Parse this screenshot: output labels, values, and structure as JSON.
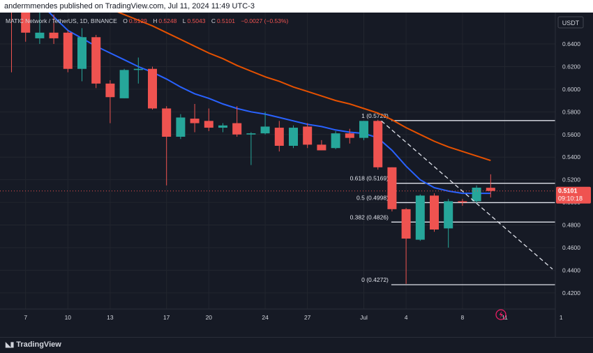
{
  "header": {
    "published": "andermmendes published on TradingView.com, Jul 11, 2024 11:49 UTC-3"
  },
  "legend": {
    "symbol": "MATIC Network / TetherUS, 1D, BINANCE",
    "o_label": "O",
    "o": "0.5129",
    "h_label": "H",
    "h": "0.5248",
    "l_label": "L",
    "l": "0.5043",
    "c_label": "C",
    "c": "0.5101",
    "change": "−0.0027 (−0.53%)"
  },
  "axis": {
    "currency": "USDT",
    "price_ticks": [
      "0.6400",
      "0.6200",
      "0.6000",
      "0.5800",
      "0.5600",
      "0.5400",
      "0.5200",
      "0.5000",
      "0.4800",
      "0.4600",
      "0.4400",
      "0.4200"
    ],
    "date_ticks": [
      "7",
      "10",
      "13",
      "17",
      "20",
      "24",
      "27",
      "Jul",
      "4",
      "8",
      "11",
      "1"
    ]
  },
  "last_price": {
    "value": "0.5101",
    "countdown": "09:10:18"
  },
  "brand": {
    "name": "TradingView"
  },
  "colors": {
    "up": "#26a69a",
    "down": "#ef5350",
    "ma_fast": "#2962ff",
    "ma_slow": "#e65100",
    "background": "#161a25"
  },
  "fib_levels": [
    {
      "ratio": "1",
      "label": "1 (0.5723)",
      "price": 0.5723
    },
    {
      "ratio": "0.618",
      "label": "0.618 (0.5169)",
      "price": 0.5169
    },
    {
      "ratio": "0.5",
      "label": "0.5 (0.4998)",
      "price": 0.4998
    },
    {
      "ratio": "0.382",
      "label": "0.382 (0.4826)",
      "price": 0.4826
    },
    {
      "ratio": "0",
      "label": "0 (0.4272)",
      "price": 0.4272
    }
  ],
  "chart_data": {
    "type": "candlestick",
    "y_range": [
      0.41,
      0.655
    ],
    "candles": [
      {
        "d": "Jun 7",
        "o": 0.685,
        "h": 0.698,
        "l": 0.615,
        "c": 0.668
      },
      {
        "d": "Jun 8",
        "o": 0.668,
        "h": 0.672,
        "l": 0.642,
        "c": 0.65
      },
      {
        "d": "Jun 9",
        "o": 0.645,
        "h": 0.668,
        "l": 0.64,
        "c": 0.65
      },
      {
        "d": "Jun 10",
        "o": 0.65,
        "h": 0.666,
        "l": 0.64,
        "c": 0.645
      },
      {
        "d": "Jun 11",
        "o": 0.65,
        "h": 0.652,
        "l": 0.615,
        "c": 0.618
      },
      {
        "d": "Jun 12",
        "o": 0.618,
        "h": 0.654,
        "l": 0.607,
        "c": 0.646
      },
      {
        "d": "Jun 13",
        "o": 0.646,
        "h": 0.648,
        "l": 0.601,
        "c": 0.605
      },
      {
        "d": "Jun 14",
        "o": 0.605,
        "h": 0.608,
        "l": 0.57,
        "c": 0.593
      },
      {
        "d": "Jun 15",
        "o": 0.592,
        "h": 0.618,
        "l": 0.592,
        "c": 0.617
      },
      {
        "d": "Jun 16",
        "o": 0.617,
        "h": 0.628,
        "l": 0.605,
        "c": 0.618
      },
      {
        "d": "Jun 17",
        "o": 0.618,
        "h": 0.62,
        "l": 0.582,
        "c": 0.583
      },
      {
        "d": "Jun 18",
        "o": 0.583,
        "h": 0.585,
        "l": 0.515,
        "c": 0.558
      },
      {
        "d": "Jun 19",
        "o": 0.558,
        "h": 0.578,
        "l": 0.556,
        "c": 0.575
      },
      {
        "d": "Jun 20",
        "o": 0.574,
        "h": 0.587,
        "l": 0.562,
        "c": 0.57
      },
      {
        "d": "Jun 21",
        "o": 0.572,
        "h": 0.583,
        "l": 0.563,
        "c": 0.566
      },
      {
        "d": "Jun 22",
        "o": 0.566,
        "h": 0.57,
        "l": 0.562,
        "c": 0.568
      },
      {
        "d": "Jun 23",
        "o": 0.57,
        "h": 0.585,
        "l": 0.558,
        "c": 0.56
      },
      {
        "d": "Jun 24",
        "o": 0.56,
        "h": 0.562,
        "l": 0.533,
        "c": 0.561
      },
      {
        "d": "Jun 25",
        "o": 0.561,
        "h": 0.58,
        "l": 0.56,
        "c": 0.567
      },
      {
        "d": "Jun 26",
        "o": 0.566,
        "h": 0.572,
        "l": 0.545,
        "c": 0.55
      },
      {
        "d": "Jun 27",
        "o": 0.55,
        "h": 0.568,
        "l": 0.548,
        "c": 0.566
      },
      {
        "d": "Jun 28",
        "o": 0.567,
        "h": 0.57,
        "l": 0.548,
        "c": 0.551
      },
      {
        "d": "Jun 29",
        "o": 0.551,
        "h": 0.555,
        "l": 0.546,
        "c": 0.546
      },
      {
        "d": "Jun 30",
        "o": 0.548,
        "h": 0.563,
        "l": 0.547,
        "c": 0.561
      },
      {
        "d": "Jul 1",
        "o": 0.561,
        "h": 0.565,
        "l": 0.552,
        "c": 0.557
      },
      {
        "d": "Jul 2",
        "o": 0.557,
        "h": 0.572,
        "l": 0.555,
        "c": 0.572
      },
      {
        "d": "Jul 3",
        "o": 0.572,
        "h": 0.573,
        "l": 0.529,
        "c": 0.531
      },
      {
        "d": "Jul 4",
        "o": 0.531,
        "h": 0.531,
        "l": 0.492,
        "c": 0.494
      },
      {
        "d": "Jul 5",
        "o": 0.494,
        "h": 0.495,
        "l": 0.428,
        "c": 0.468
      },
      {
        "d": "Jul 6",
        "o": 0.467,
        "h": 0.507,
        "l": 0.466,
        "c": 0.506
      },
      {
        "d": "Jul 7",
        "o": 0.506,
        "h": 0.508,
        "l": 0.474,
        "c": 0.476
      },
      {
        "d": "Jul 8",
        "o": 0.477,
        "h": 0.503,
        "l": 0.46,
        "c": 0.501
      },
      {
        "d": "Jul 9",
        "o": 0.501,
        "h": 0.503,
        "l": 0.497,
        "c": 0.5
      },
      {
        "d": "Jul 10",
        "o": 0.501,
        "h": 0.515,
        "l": 0.499,
        "c": 0.513
      },
      {
        "d": "Jul 11",
        "o": 0.5129,
        "h": 0.5248,
        "l": 0.5043,
        "c": 0.5101
      }
    ],
    "ma_fast": [
      0.7,
      0.688,
      0.676,
      0.664,
      0.652,
      0.645,
      0.638,
      0.632,
      0.626,
      0.62,
      0.615,
      0.609,
      0.602,
      0.596,
      0.592,
      0.587,
      0.583,
      0.58,
      0.578,
      0.575,
      0.572,
      0.569,
      0.567,
      0.564,
      0.562,
      0.561,
      0.557,
      0.546,
      0.532,
      0.52,
      0.513,
      0.51,
      0.508,
      0.508,
      0.508
    ],
    "ma_slow": [
      0.715,
      0.708,
      0.7,
      0.694,
      0.688,
      0.682,
      0.676,
      0.671,
      0.666,
      0.661,
      0.656,
      0.65,
      0.644,
      0.638,
      0.632,
      0.627,
      0.621,
      0.616,
      0.611,
      0.607,
      0.602,
      0.598,
      0.594,
      0.59,
      0.587,
      0.583,
      0.579,
      0.573,
      0.566,
      0.56,
      0.554,
      0.549,
      0.545,
      0.541,
      0.537
    ],
    "trendline": {
      "from": {
        "d": "Jul 3",
        "price": 0.572
      },
      "to": {
        "d": "Jul 15",
        "price": 0.441
      }
    }
  }
}
